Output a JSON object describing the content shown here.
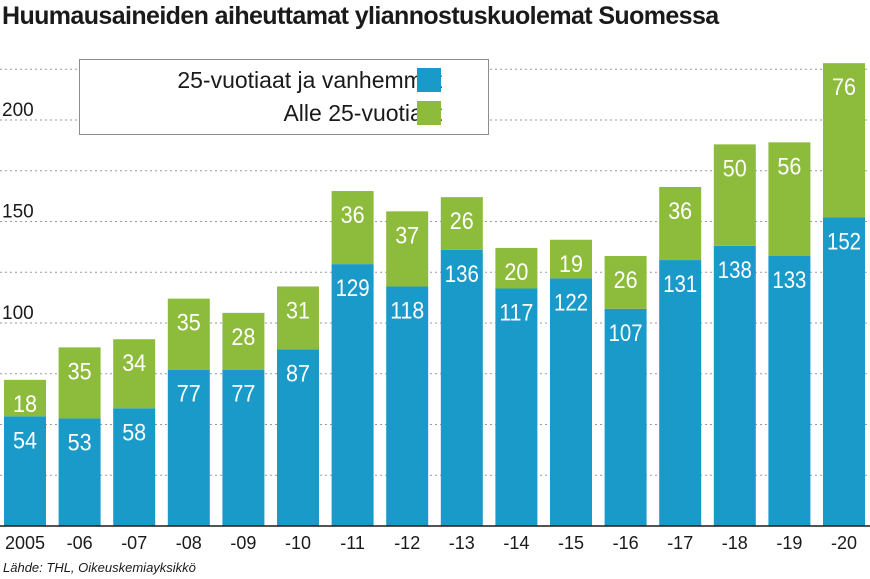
{
  "chart_data": {
    "type": "bar",
    "stacked": true,
    "title": "Huumausaineiden aiheuttamat yliannostuskuolemat Suomessa",
    "source": "Lähde: THL, Oikeuskemiayksikkö",
    "categories": [
      "2005",
      "-06",
      "-07",
      "-08",
      "-09",
      "-10",
      "-11",
      "-12",
      "-13",
      "-14",
      "-15",
      "-16",
      "-17",
      "-18",
      "-19",
      "-20"
    ],
    "series": [
      {
        "name": "25-vuotiaat ja vanhemmat",
        "color": "#1a9ac9",
        "values": [
          54,
          53,
          58,
          77,
          77,
          87,
          129,
          118,
          136,
          117,
          122,
          107,
          131,
          138,
          133,
          152
        ]
      },
      {
        "name": "Alle 25-vuotiaat",
        "color": "#8dbb3c",
        "values": [
          18,
          35,
          34,
          35,
          28,
          31,
          36,
          37,
          26,
          20,
          19,
          26,
          36,
          50,
          56,
          76
        ]
      }
    ],
    "yticks": [
      100,
      150,
      200
    ],
    "ylim": [
      0,
      235
    ],
    "xlabel": "",
    "ylabel": "",
    "grid": true,
    "legend_position": "top-left"
  }
}
